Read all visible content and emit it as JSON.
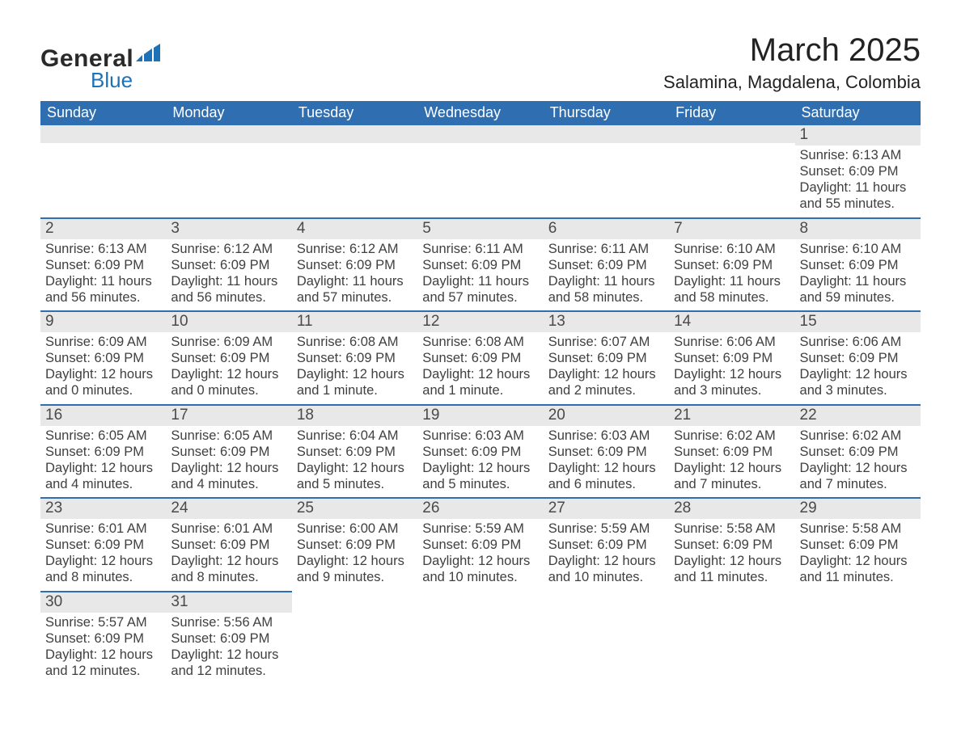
{
  "logo": {
    "line1": "General",
    "line2": "Blue"
  },
  "title": "March 2025",
  "location": "Salamina, Magdalena, Colombia",
  "day_headers": [
    "Sunday",
    "Monday",
    "Tuesday",
    "Wednesday",
    "Thursday",
    "Friday",
    "Saturday"
  ],
  "labels": {
    "sunrise": "Sunrise: ",
    "sunset": "Sunset: ",
    "daylight": "Daylight: "
  },
  "colors": {
    "header_blue": "#2f6eb0",
    "daynum_bg": "#e8e8e8",
    "logo_blue": "#1d72b8",
    "logo_dark": "#2a2a2a",
    "text": "#3a3a3a",
    "background": "#ffffff"
  },
  "weeks": [
    [
      null,
      null,
      null,
      null,
      null,
      null,
      {
        "d": "1",
        "sr": "6:13 AM",
        "ss": "6:09 PM",
        "dl": "11 hours and 55 minutes."
      }
    ],
    [
      {
        "d": "2",
        "sr": "6:13 AM",
        "ss": "6:09 PM",
        "dl": "11 hours and 56 minutes."
      },
      {
        "d": "3",
        "sr": "6:12 AM",
        "ss": "6:09 PM",
        "dl": "11 hours and 56 minutes."
      },
      {
        "d": "4",
        "sr": "6:12 AM",
        "ss": "6:09 PM",
        "dl": "11 hours and 57 minutes."
      },
      {
        "d": "5",
        "sr": "6:11 AM",
        "ss": "6:09 PM",
        "dl": "11 hours and 57 minutes."
      },
      {
        "d": "6",
        "sr": "6:11 AM",
        "ss": "6:09 PM",
        "dl": "11 hours and 58 minutes."
      },
      {
        "d": "7",
        "sr": "6:10 AM",
        "ss": "6:09 PM",
        "dl": "11 hours and 58 minutes."
      },
      {
        "d": "8",
        "sr": "6:10 AM",
        "ss": "6:09 PM",
        "dl": "11 hours and 59 minutes."
      }
    ],
    [
      {
        "d": "9",
        "sr": "6:09 AM",
        "ss": "6:09 PM",
        "dl": "12 hours and 0 minutes."
      },
      {
        "d": "10",
        "sr": "6:09 AM",
        "ss": "6:09 PM",
        "dl": "12 hours and 0 minutes."
      },
      {
        "d": "11",
        "sr": "6:08 AM",
        "ss": "6:09 PM",
        "dl": "12 hours and 1 minute."
      },
      {
        "d": "12",
        "sr": "6:08 AM",
        "ss": "6:09 PM",
        "dl": "12 hours and 1 minute."
      },
      {
        "d": "13",
        "sr": "6:07 AM",
        "ss": "6:09 PM",
        "dl": "12 hours and 2 minutes."
      },
      {
        "d": "14",
        "sr": "6:06 AM",
        "ss": "6:09 PM",
        "dl": "12 hours and 3 minutes."
      },
      {
        "d": "15",
        "sr": "6:06 AM",
        "ss": "6:09 PM",
        "dl": "12 hours and 3 minutes."
      }
    ],
    [
      {
        "d": "16",
        "sr": "6:05 AM",
        "ss": "6:09 PM",
        "dl": "12 hours and 4 minutes."
      },
      {
        "d": "17",
        "sr": "6:05 AM",
        "ss": "6:09 PM",
        "dl": "12 hours and 4 minutes."
      },
      {
        "d": "18",
        "sr": "6:04 AM",
        "ss": "6:09 PM",
        "dl": "12 hours and 5 minutes."
      },
      {
        "d": "19",
        "sr": "6:03 AM",
        "ss": "6:09 PM",
        "dl": "12 hours and 5 minutes."
      },
      {
        "d": "20",
        "sr": "6:03 AM",
        "ss": "6:09 PM",
        "dl": "12 hours and 6 minutes."
      },
      {
        "d": "21",
        "sr": "6:02 AM",
        "ss": "6:09 PM",
        "dl": "12 hours and 7 minutes."
      },
      {
        "d": "22",
        "sr": "6:02 AM",
        "ss": "6:09 PM",
        "dl": "12 hours and 7 minutes."
      }
    ],
    [
      {
        "d": "23",
        "sr": "6:01 AM",
        "ss": "6:09 PM",
        "dl": "12 hours and 8 minutes."
      },
      {
        "d": "24",
        "sr": "6:01 AM",
        "ss": "6:09 PM",
        "dl": "12 hours and 8 minutes."
      },
      {
        "d": "25",
        "sr": "6:00 AM",
        "ss": "6:09 PM",
        "dl": "12 hours and 9 minutes."
      },
      {
        "d": "26",
        "sr": "5:59 AM",
        "ss": "6:09 PM",
        "dl": "12 hours and 10 minutes."
      },
      {
        "d": "27",
        "sr": "5:59 AM",
        "ss": "6:09 PM",
        "dl": "12 hours and 10 minutes."
      },
      {
        "d": "28",
        "sr": "5:58 AM",
        "ss": "6:09 PM",
        "dl": "12 hours and 11 minutes."
      },
      {
        "d": "29",
        "sr": "5:58 AM",
        "ss": "6:09 PM",
        "dl": "12 hours and 11 minutes."
      }
    ],
    [
      {
        "d": "30",
        "sr": "5:57 AM",
        "ss": "6:09 PM",
        "dl": "12 hours and 12 minutes."
      },
      {
        "d": "31",
        "sr": "5:56 AM",
        "ss": "6:09 PM",
        "dl": "12 hours and 12 minutes."
      },
      null,
      null,
      null,
      null,
      null
    ]
  ]
}
